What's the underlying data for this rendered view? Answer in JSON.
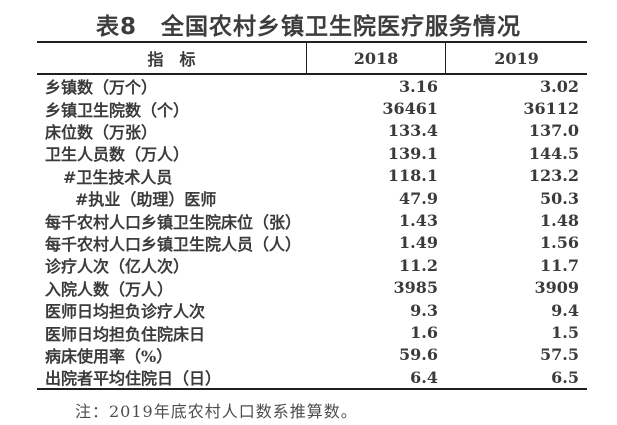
{
  "title": "表8　全国农村乡镇卫生院医疗服务情况",
  "colors": {
    "text": "#3b3b3b",
    "border": "#1f1f1f",
    "note_text": "#4e4e4e",
    "background": "#ffffff"
  },
  "table": {
    "header": {
      "indicator": "指　标",
      "col2018": "2018",
      "col2019": "2019"
    },
    "rows": [
      {
        "label": "乡镇数（万个）",
        "indent": 0,
        "v2018": "3.16",
        "v2019": "3.02"
      },
      {
        "label": "乡镇卫生院数（个）",
        "indent": 0,
        "v2018": "36461",
        "v2019": "36112"
      },
      {
        "label": "床位数（万张）",
        "indent": 0,
        "v2018": "133.4",
        "v2019": "137.0"
      },
      {
        "label": "卫生人员数（万人）",
        "indent": 0,
        "v2018": "139.1",
        "v2019": "144.5"
      },
      {
        "label": "#卫生技术人员",
        "indent": 1,
        "v2018": "118.1",
        "v2019": "123.2"
      },
      {
        "label": "#执业（助理）医师",
        "indent": 2,
        "v2018": "47.9",
        "v2019": "50.3"
      },
      {
        "label": "每千农村人口乡镇卫生院床位（张）",
        "indent": 0,
        "v2018": "1.43",
        "v2019": "1.48"
      },
      {
        "label": "每千农村人口乡镇卫生院人员（人）",
        "indent": 0,
        "v2018": "1.49",
        "v2019": "1.56"
      },
      {
        "label": "诊疗人次（亿人次）",
        "indent": 0,
        "v2018": "11.2",
        "v2019": "11.7"
      },
      {
        "label": "入院人数（万人）",
        "indent": 0,
        "v2018": "3985",
        "v2019": "3909"
      },
      {
        "label": "医师日均担负诊疗人次",
        "indent": 0,
        "v2018": "9.3",
        "v2019": "9.4"
      },
      {
        "label": "医师日均担负住院床日",
        "indent": 0,
        "v2018": "1.6",
        "v2019": "1.5"
      },
      {
        "label": "病床使用率（%）",
        "indent": 0,
        "v2018": "59.6",
        "v2019": "57.5"
      },
      {
        "label": "出院者平均住院日（日）",
        "indent": 0,
        "v2018": "6.4",
        "v2019": "6.5"
      }
    ]
  },
  "note": "注：2019年底农村人口数系推算数。"
}
